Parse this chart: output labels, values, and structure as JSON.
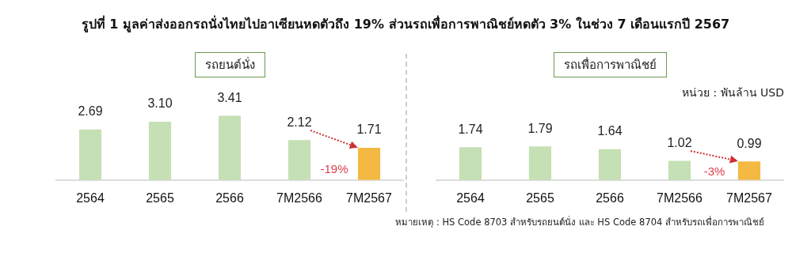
{
  "chart_data": [
    {
      "type": "bar",
      "title": "รูปที่ 1 มูลค่าส่งออกรถนั่งไทยไปอาเซียนหดตัวถึง 19% ส่วนรถเพื่อการพาณิชย์หดตัว 3% ในช่วง 7 เดือนแรกปี 2567",
      "subtitle": "รถยนต์นั่ง",
      "categories": [
        "2564",
        "2565",
        "2566",
        "7M2566",
        "7M2567"
      ],
      "values": [
        2.69,
        3.1,
        3.41,
        2.12,
        1.71
      ],
      "value_labels": [
        "2.69",
        "3.10",
        "3.41",
        "2.12",
        "1.71"
      ],
      "colors": [
        "#c5e0b4",
        "#c5e0b4",
        "#c5e0b4",
        "#c5e0b4",
        "#f4b942"
      ],
      "annotations": [
        "-19%"
      ],
      "legend": false,
      "grid": false,
      "tick_labels": "x"
    },
    {
      "type": "bar",
      "subtitle": "รถเพื่อการพาณิชย์",
      "categories": [
        "2564",
        "2565",
        "2566",
        "7M2566",
        "7M2567"
      ],
      "values": [
        1.74,
        1.79,
        1.64,
        1.02,
        0.99
      ],
      "value_labels": [
        "1.74",
        "1.79",
        "1.64",
        "1.02",
        "0.99"
      ],
      "colors": [
        "#c5e0b4",
        "#c5e0b4",
        "#c5e0b4",
        "#c5e0b4",
        "#f4b942"
      ],
      "annotations": [
        "หน่วย : พันล้าน USD",
        "หมายเหตุ : HS Code 8703 สำหรับรถยนต์นั่ง และ HS Code 8704 สำหรับรถเพื่อการพาณิชย์",
        "-3%"
      ],
      "legend": false,
      "grid": false,
      "tick_labels": "x"
    }
  ]
}
